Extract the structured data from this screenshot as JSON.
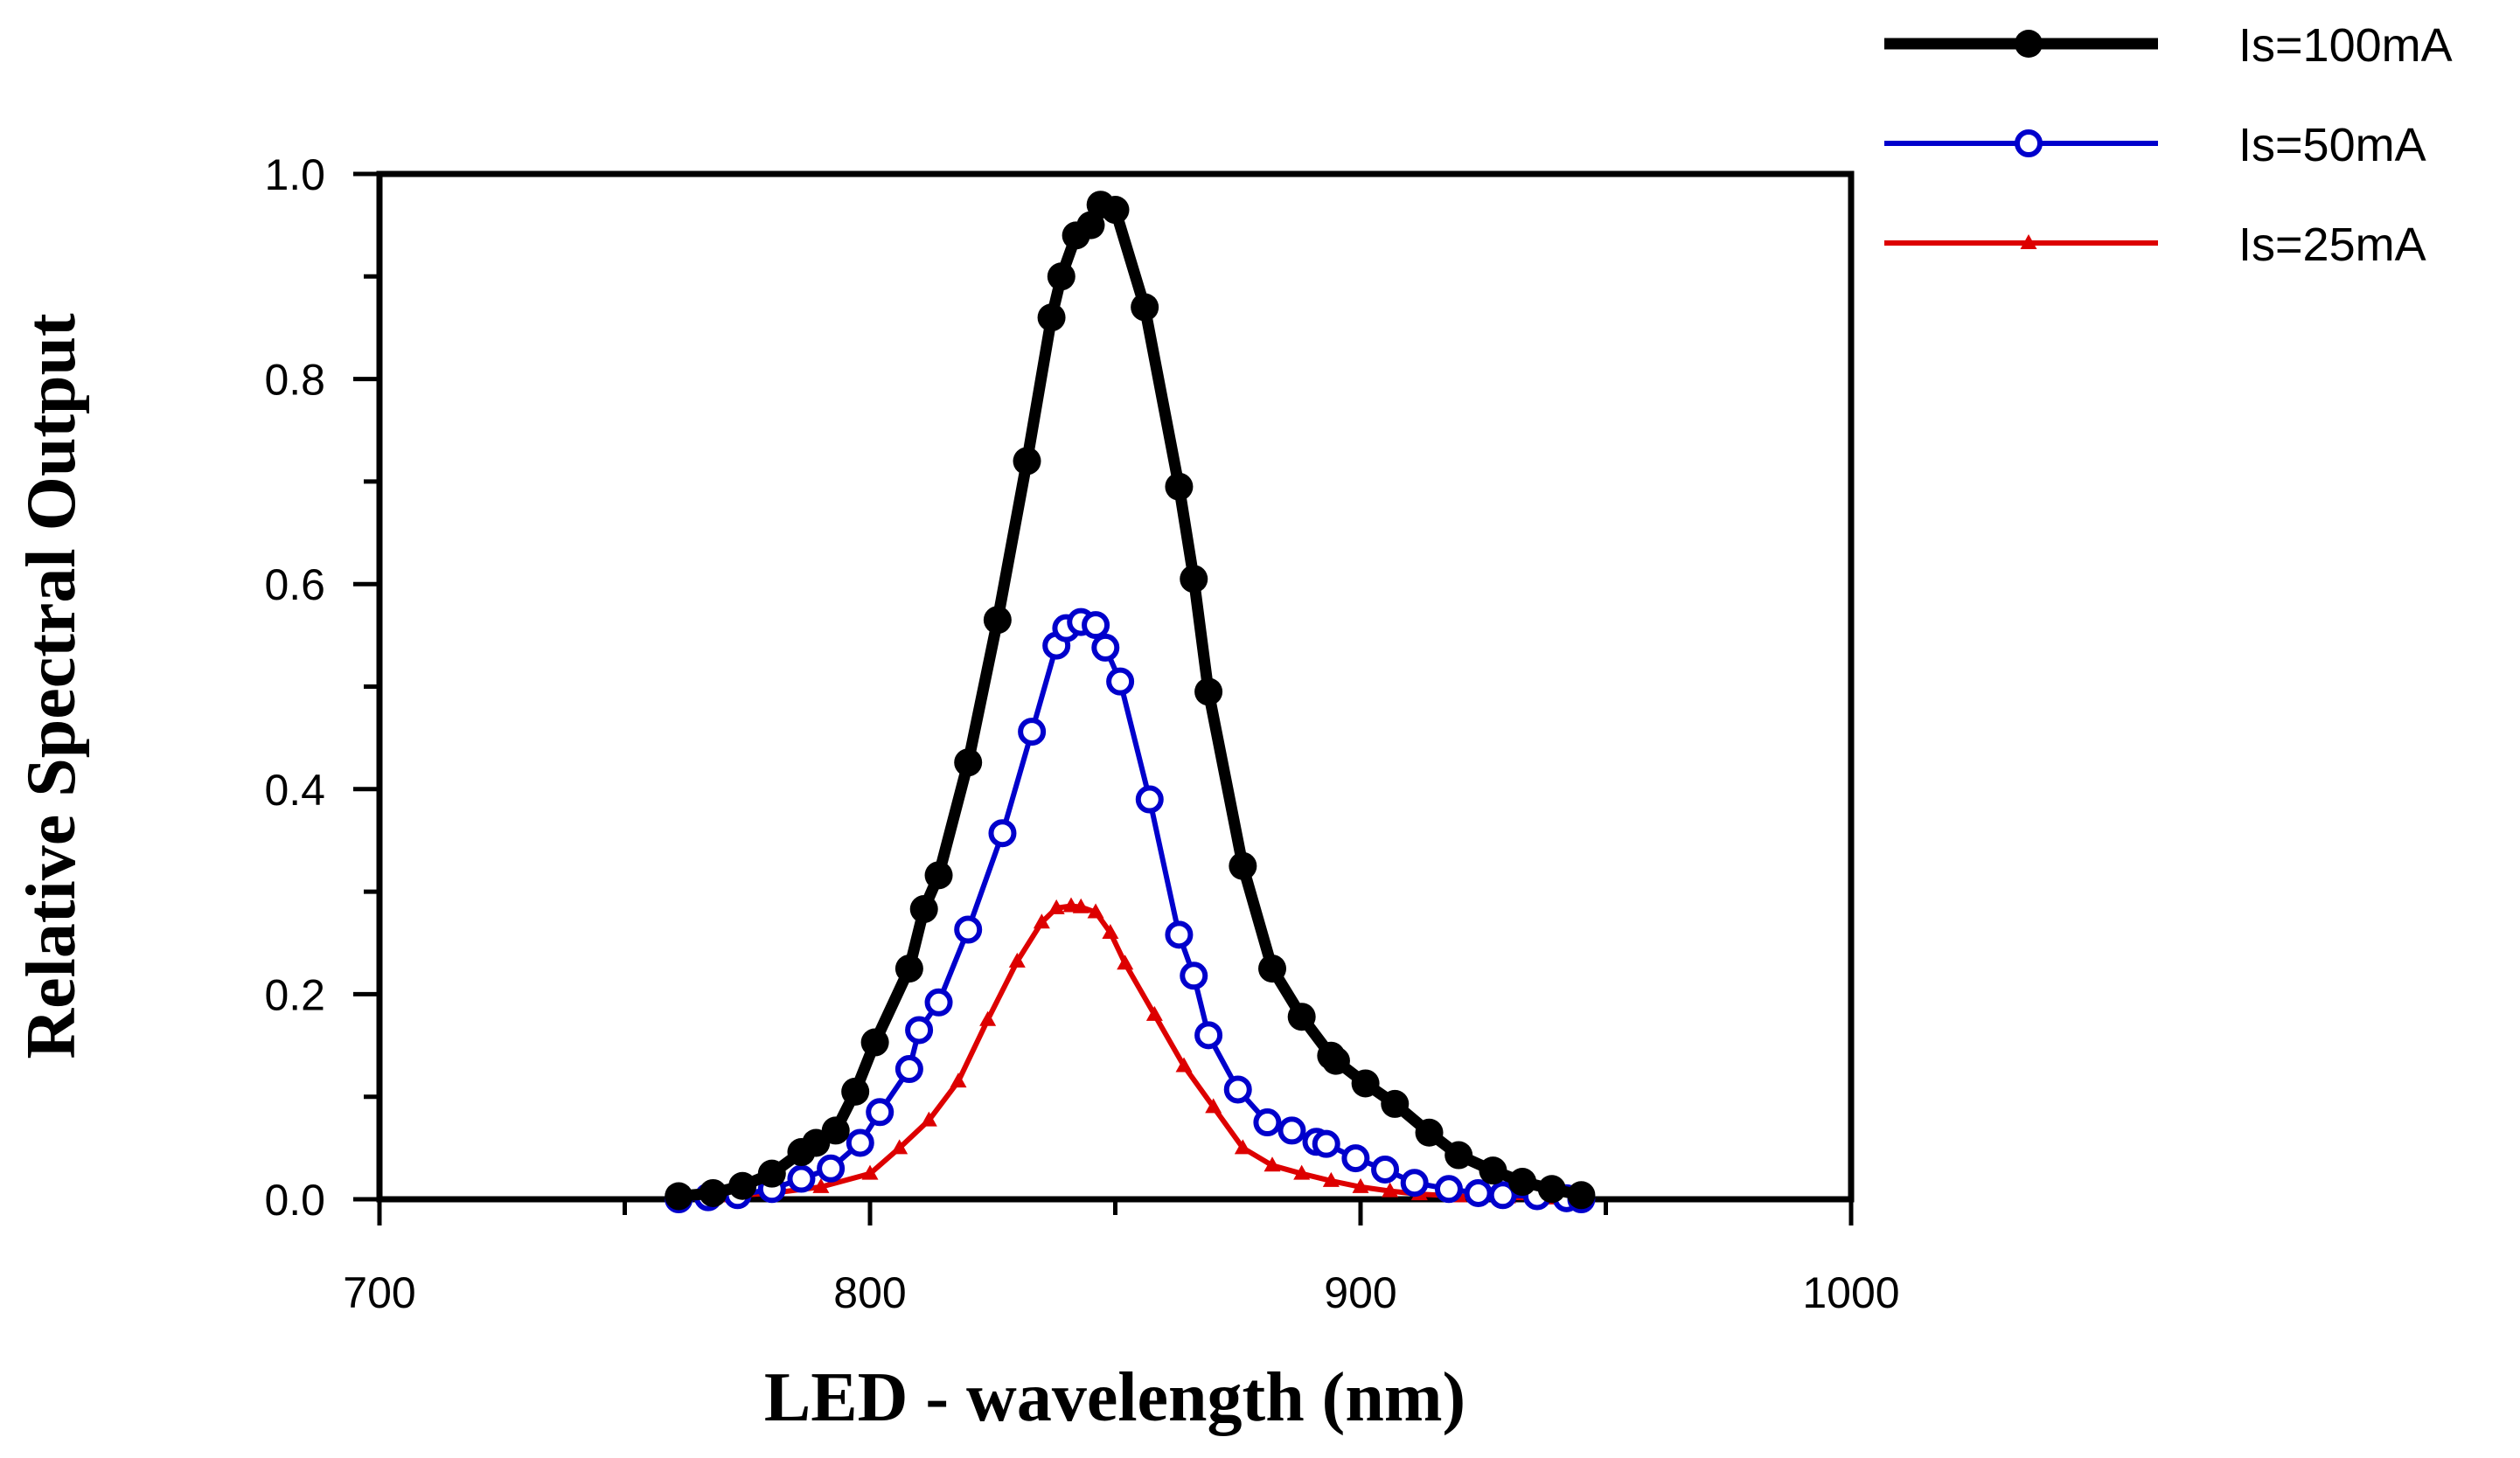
{
  "chart_data": {
    "type": "line",
    "title": "",
    "xlabel": "LED - wavelength (nm)",
    "ylabel": "Relative Spectral Output",
    "xlim": [
      700,
      1000
    ],
    "ylim": [
      0,
      1.0
    ],
    "x_ticks": [
      "700",
      "800",
      "900",
      "1000"
    ],
    "y_ticks": [
      "0.0",
      "0.2",
      "0.4",
      "0.6",
      "0.8",
      "1.0"
    ],
    "legend_position": "top-right",
    "series": [
      {
        "name": "Is=100mA",
        "color": "#000000",
        "marker": "filled-circle",
        "points": [
          [
            761,
            0.003
          ],
          [
            768,
            0.006
          ],
          [
            774,
            0.013
          ],
          [
            780,
            0.025
          ],
          [
            786,
            0.046
          ],
          [
            789,
            0.055
          ],
          [
            793,
            0.067
          ],
          [
            797,
            0.105
          ],
          [
            801,
            0.153
          ],
          [
            808,
            0.225
          ],
          [
            811,
            0.283
          ],
          [
            814,
            0.316
          ],
          [
            820,
            0.426
          ],
          [
            826,
            0.565
          ],
          [
            832,
            0.72
          ],
          [
            837,
            0.86
          ],
          [
            839,
            0.9
          ],
          [
            842,
            0.94
          ],
          [
            845,
            0.95
          ],
          [
            847,
            0.97
          ],
          [
            850,
            0.965
          ],
          [
            856,
            0.87
          ],
          [
            863,
            0.695
          ],
          [
            866,
            0.605
          ],
          [
            869,
            0.495
          ],
          [
            876,
            0.325
          ],
          [
            882,
            0.225
          ],
          [
            888,
            0.178
          ],
          [
            894,
            0.14
          ],
          [
            895,
            0.135
          ],
          [
            901,
            0.113
          ],
          [
            907,
            0.093
          ],
          [
            914,
            0.065
          ],
          [
            920,
            0.043
          ],
          [
            927,
            0.028
          ],
          [
            933,
            0.017
          ],
          [
            939,
            0.01
          ],
          [
            945,
            0.004
          ]
        ]
      },
      {
        "name": "Is=50mA",
        "color": "#0000CC",
        "marker": "open-circle",
        "points": [
          [
            761,
            0.0
          ],
          [
            767,
            0.002
          ],
          [
            773,
            0.004
          ],
          [
            780,
            0.01
          ],
          [
            786,
            0.02
          ],
          [
            792,
            0.03
          ],
          [
            798,
            0.055
          ],
          [
            802,
            0.085
          ],
          [
            808,
            0.127
          ],
          [
            810,
            0.165
          ],
          [
            814,
            0.192
          ],
          [
            820,
            0.263
          ],
          [
            827,
            0.357
          ],
          [
            833,
            0.456
          ],
          [
            838,
            0.54
          ],
          [
            840,
            0.557
          ],
          [
            843,
            0.563
          ],
          [
            846,
            0.56
          ],
          [
            848,
            0.538
          ],
          [
            851,
            0.505
          ],
          [
            857,
            0.39
          ],
          [
            863,
            0.258
          ],
          [
            866,
            0.218
          ],
          [
            869,
            0.16
          ],
          [
            875,
            0.107
          ],
          [
            881,
            0.075
          ],
          [
            886,
            0.067
          ],
          [
            891,
            0.056
          ],
          [
            893,
            0.054
          ],
          [
            899,
            0.04
          ],
          [
            905,
            0.029
          ],
          [
            911,
            0.016
          ],
          [
            918,
            0.01
          ],
          [
            924,
            0.006
          ],
          [
            929,
            0.004
          ],
          [
            936,
            0.003
          ],
          [
            942,
            0.001
          ],
          [
            945,
            0.0
          ]
        ]
      },
      {
        "name": "Is=25mA",
        "color": "#DD0000",
        "marker": "filled-triangle",
        "points": [
          [
            761,
            0.0
          ],
          [
            770,
            0.003
          ],
          [
            780,
            0.006
          ],
          [
            790,
            0.012
          ],
          [
            800,
            0.025
          ],
          [
            806,
            0.05
          ],
          [
            812,
            0.077
          ],
          [
            818,
            0.115
          ],
          [
            824,
            0.175
          ],
          [
            830,
            0.232
          ],
          [
            835,
            0.27
          ],
          [
            838,
            0.284
          ],
          [
            841,
            0.286
          ],
          [
            843,
            0.285
          ],
          [
            846,
            0.28
          ],
          [
            849,
            0.26
          ],
          [
            852,
            0.23
          ],
          [
            858,
            0.18
          ],
          [
            864,
            0.13
          ],
          [
            870,
            0.09
          ],
          [
            876,
            0.05
          ],
          [
            882,
            0.033
          ],
          [
            888,
            0.025
          ],
          [
            894,
            0.018
          ],
          [
            900,
            0.012
          ],
          [
            906,
            0.008
          ],
          [
            912,
            0.005
          ],
          [
            920,
            0.003
          ],
          [
            930,
            0.002
          ],
          [
            938,
            0.001
          ],
          [
            945,
            0.0
          ]
        ]
      }
    ]
  }
}
